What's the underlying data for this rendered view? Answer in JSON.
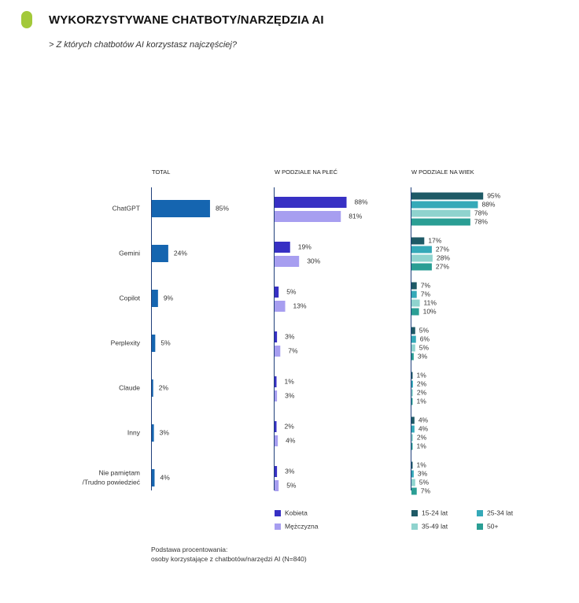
{
  "header": {
    "title": "WYKORZYSTYWANE CHATBOTY/NARZĘDZIA AI",
    "subtitle": "> Z których chatbotów AI korzystasz najczęściej?"
  },
  "footnote": {
    "line1": "Podstawa procentowania:",
    "line2": "osoby korzystające z chatbotów/narzędzi AI (N=840)"
  },
  "colors": {
    "total": "#1565b0",
    "kobieta": "#3730c4",
    "mezczyzna": "#a79ef0",
    "age_15_24": "#1e5a66",
    "age_25_34": "#35a9b8",
    "age_35_49": "#8fd3ce",
    "age_50_plus": "#2a9e94",
    "axis": "#1f3f7a"
  },
  "chart_data": [
    {
      "type": "bar",
      "orientation": "horizontal",
      "title": "TOTAL",
      "categories": [
        "ChatGPT",
        "Gemini",
        "Copilot",
        "Perplexity",
        "Claude",
        "Inny",
        "Nie pamiętam /Trudno powiedzieć"
      ],
      "category_labels": [
        [
          "ChatGPT"
        ],
        [
          "Gemini"
        ],
        [
          "Copilot"
        ],
        [
          "Perplexity"
        ],
        [
          "Claude"
        ],
        [
          "Inny"
        ],
        [
          "Nie pamiętam",
          "/Trudno powiedzieć"
        ]
      ],
      "series": [
        {
          "name": "Total",
          "values": [
            85,
            24,
            9,
            5,
            2,
            3,
            4
          ]
        }
      ],
      "unit": "%",
      "xlim": [
        0,
        100
      ]
    },
    {
      "type": "bar",
      "orientation": "horizontal",
      "title": "W PODZIALE NA PŁEĆ",
      "categories": [
        "ChatGPT",
        "Gemini",
        "Copilot",
        "Perplexity",
        "Claude",
        "Inny",
        "Nie pamiętam /Trudno powiedzieć"
      ],
      "series": [
        {
          "name": "Kobieta",
          "values": [
            88,
            19,
            5,
            3,
            1,
            2,
            3
          ]
        },
        {
          "name": "Mężczyzna",
          "values": [
            81,
            30,
            13,
            7,
            3,
            4,
            5
          ]
        }
      ],
      "unit": "%",
      "xlim": [
        0,
        100
      ],
      "legend": "bottom"
    },
    {
      "type": "bar",
      "orientation": "horizontal",
      "title": "W PODZIALE NA WIEK",
      "categories": [
        "ChatGPT",
        "Gemini",
        "Copilot",
        "Perplexity",
        "Claude",
        "Inny",
        "Nie pamiętam /Trudno powiedzieć"
      ],
      "series": [
        {
          "name": "15-24 lat",
          "values": [
            95,
            17,
            7,
            5,
            1,
            4,
            1
          ]
        },
        {
          "name": "25-34 lat",
          "values": [
            88,
            27,
            7,
            6,
            2,
            4,
            3
          ]
        },
        {
          "name": "35-49 lat",
          "values": [
            78,
            28,
            11,
            5,
            2,
            2,
            5
          ]
        },
        {
          "name": "50+",
          "values": [
            78,
            27,
            10,
            3,
            1,
            1,
            7
          ]
        }
      ],
      "unit": "%",
      "xlim": [
        0,
        100
      ],
      "legend": "bottom"
    }
  ]
}
